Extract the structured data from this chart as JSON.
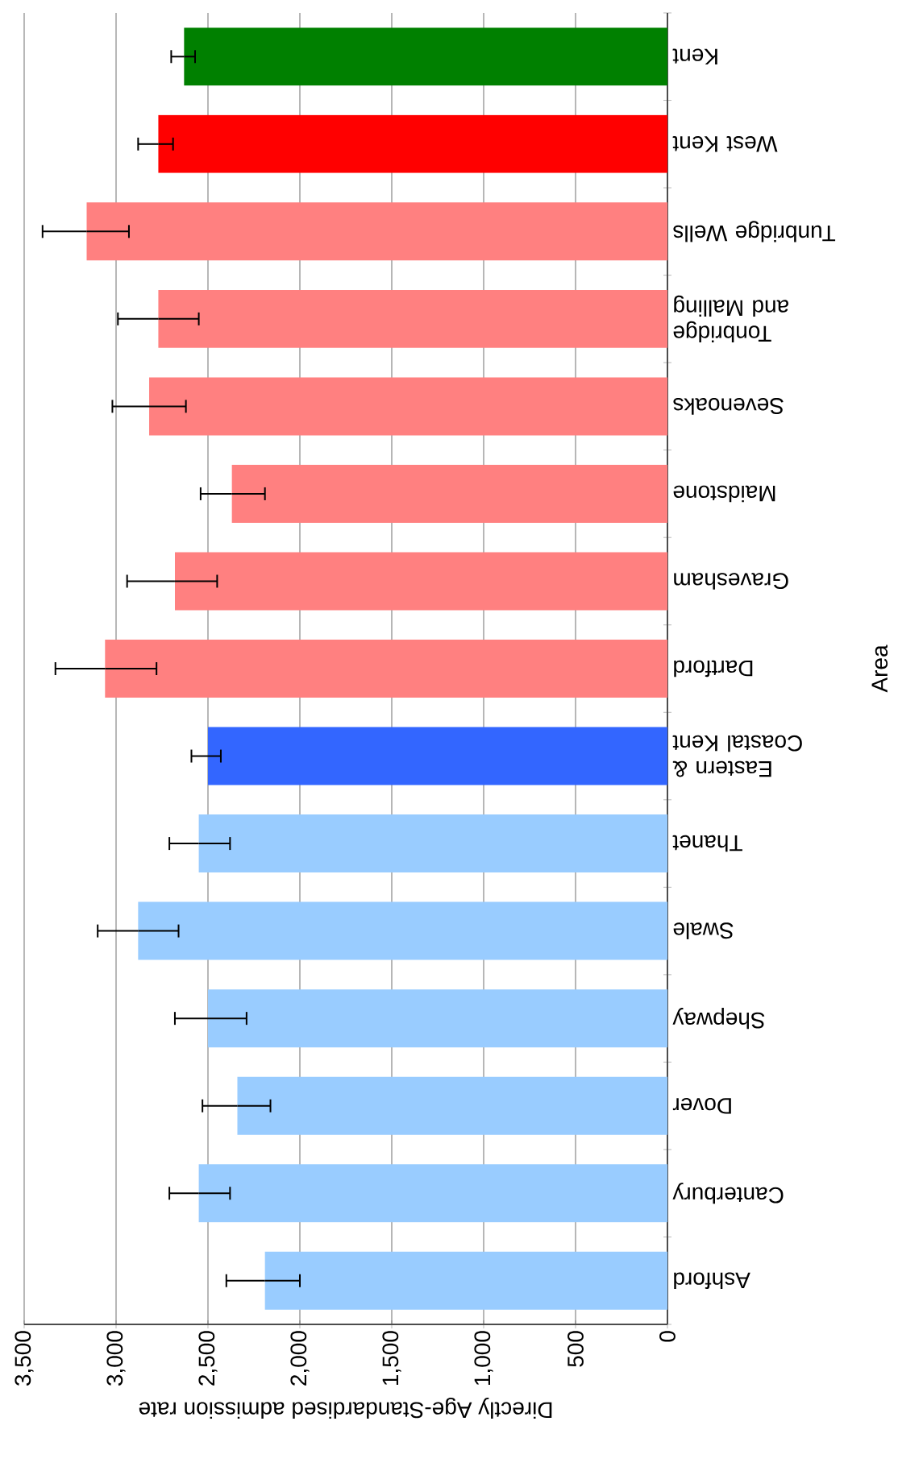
{
  "chart_data": {
    "type": "bar",
    "orientation": "horizontal",
    "xlabel": "Directly Age-Standardised admission rate",
    "ylabel": "Area",
    "categories": [
      "Kent",
      "West Kent",
      "Tunbridge Wells",
      "Tonbridge and Malling",
      "Sevenoaks",
      "Maidstone",
      "Gravesham",
      "Dartford",
      "Eastern & Coastal Kent",
      "Thanet",
      "Swale",
      "Shepway",
      "Dover",
      "Canterbury",
      "Ashford"
    ],
    "values": [
      2630,
      2770,
      3160,
      2770,
      2820,
      2370,
      2680,
      3060,
      2500,
      2550,
      2880,
      2500,
      2340,
      2550,
      2190
    ],
    "errors": [
      [
        2570,
        2700
      ],
      [
        2690,
        2880
      ],
      [
        2930,
        3400
      ],
      [
        2550,
        2990
      ],
      [
        2620,
        3020
      ],
      [
        2190,
        2540
      ],
      [
        2450,
        2940
      ],
      [
        2780,
        3330
      ],
      [
        2430,
        2590
      ],
      [
        2380,
        2710
      ],
      [
        2660,
        3100
      ],
      [
        2290,
        2680
      ],
      [
        2160,
        2530
      ],
      [
        2380,
        2710
      ],
      [
        2000,
        2400
      ]
    ],
    "colors": [
      "#008000",
      "#ff0000",
      "#ff8080",
      "#ff8080",
      "#ff8080",
      "#ff8080",
      "#ff8080",
      "#ff8080",
      "#3366ff",
      "#99ccff",
      "#99ccff",
      "#99ccff",
      "#99ccff",
      "#99ccff",
      "#99ccff"
    ],
    "xlim": [
      3500,
      0
    ],
    "xticks": [
      {
        "value": 3500,
        "label": "3,500"
      },
      {
        "value": 3000,
        "label": "3,000"
      },
      {
        "value": 2500,
        "label": "2,500"
      },
      {
        "value": 2000,
        "label": "2,000"
      },
      {
        "value": 1500,
        "label": "1,500"
      },
      {
        "value": 1000,
        "label": "1,000"
      },
      500,
      0
    ],
    "grid": "x"
  }
}
